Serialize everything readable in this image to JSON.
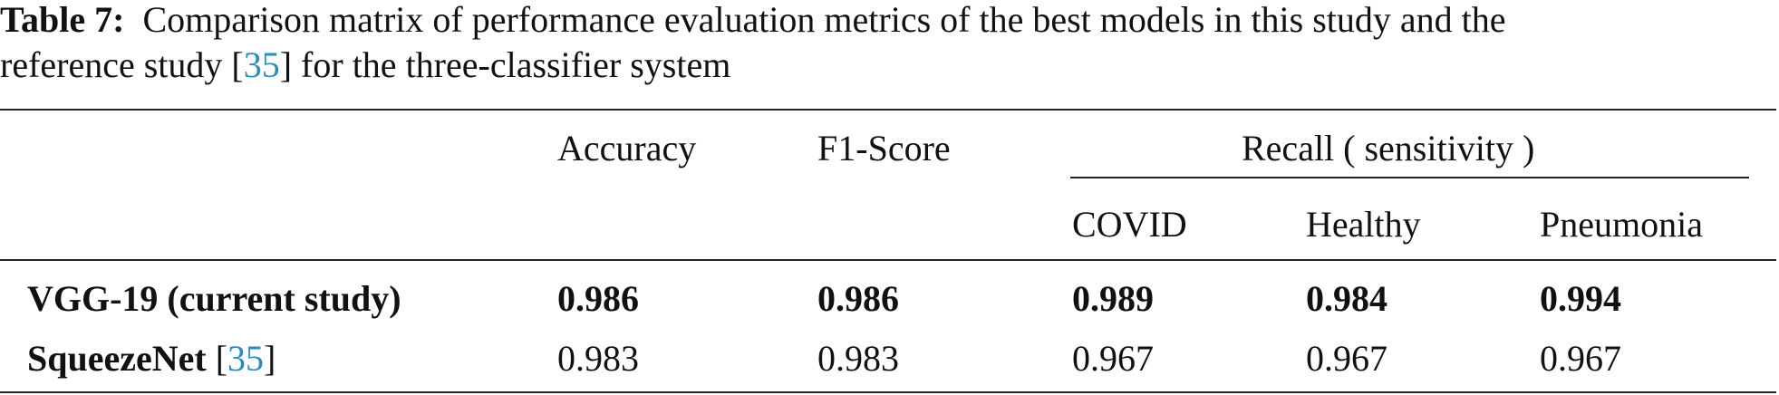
{
  "caption": {
    "label": "Table 7:",
    "line1": "Comparison matrix of performance evaluation metrics of the best models in this study and the",
    "line2_before": "reference study [",
    "ref": "35",
    "line2_after": "] for the three-classifier system"
  },
  "table": {
    "headers": [
      "Accuracy",
      "F1-Score"
    ],
    "group_header": "Recall ( sensitivity )",
    "sub_headers": [
      "COVID",
      "Healthy",
      "Pneumonia"
    ],
    "rows": [
      {
        "name": "VGG-19 (current study)",
        "values": [
          0.986,
          0.986,
          0.989,
          0.984,
          0.994
        ]
      },
      {
        "name": "SqueezeNet",
        "ref_before": "[",
        "ref": "35",
        "ref_after": "]",
        "values": [
          0.983,
          0.983,
          0.967,
          0.967,
          0.967
        ]
      }
    ]
  }
}
